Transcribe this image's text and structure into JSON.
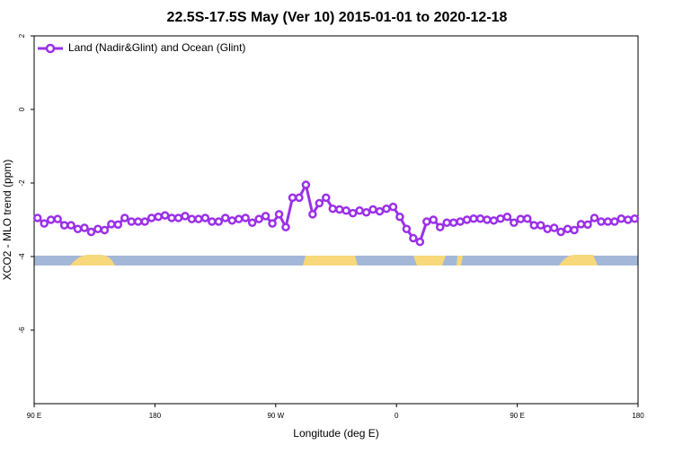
{
  "chart_data": {
    "type": "line",
    "title": "22.5S-17.5S May (Ver 10)   2015-01-01 to 2020-12-18",
    "x_label": "Longitude (deg E)",
    "y_label": "XCO2 - MLO trend (ppm)",
    "xlim": [
      90,
      540
    ],
    "ylim": [
      -8,
      2
    ],
    "xticks": [
      {
        "value": 90,
        "label": "90 E"
      },
      {
        "value": 180,
        "label": "180"
      },
      {
        "value": 270,
        "label": "90 W"
      },
      {
        "value": 360,
        "label": "0"
      },
      {
        "value": 450,
        "label": "90 E"
      },
      {
        "value": 540,
        "label": "180"
      }
    ],
    "yticks": [
      -6,
      -4,
      -2,
      0,
      2
    ],
    "legend_position": "upper-left",
    "x": [
      92.5,
      97.5,
      102.5,
      107.5,
      112.5,
      117.5,
      122.5,
      127.5,
      132.5,
      137.5,
      142.5,
      147.5,
      152.5,
      157.5,
      162.5,
      167.5,
      172.5,
      177.5,
      182.5,
      187.5,
      192.5,
      197.5,
      202.5,
      207.5,
      212.5,
      217.5,
      222.5,
      227.5,
      232.5,
      237.5,
      242.5,
      247.5,
      252.5,
      257.5,
      262.5,
      267.5,
      272.5,
      277.5,
      282.5,
      287.5,
      292.5,
      297.5,
      302.5,
      307.5,
      312.5,
      317.5,
      322.5,
      327.5,
      332.5,
      337.5,
      342.5,
      347.5,
      352.5,
      357.5,
      362.5,
      367.5,
      372.5,
      377.5,
      382.5,
      387.5,
      392.5,
      397.5,
      402.5,
      407.5,
      412.5,
      417.5,
      422.5,
      427.5,
      432.5,
      437.5,
      442.5,
      447.5,
      452.5,
      457.5,
      462.5,
      467.5,
      472.5,
      477.5,
      482.5,
      487.5,
      492.5,
      497.5,
      502.5,
      507.5,
      512.5,
      517.5,
      522.5,
      527.5,
      532.5,
      537.5
    ],
    "series": [
      {
        "name": "Land (Nadir&Glint) and Ocean (Glint)",
        "color": "#9b30e8",
        "values": [
          -2.95,
          -3.1,
          -3.0,
          -2.98,
          -3.15,
          -3.15,
          -3.25,
          -3.22,
          -3.33,
          -3.25,
          -3.28,
          -3.12,
          -3.13,
          -2.95,
          -3.05,
          -3.05,
          -3.05,
          -2.95,
          -2.92,
          -2.88,
          -2.95,
          -2.95,
          -2.9,
          -2.98,
          -2.98,
          -2.95,
          -3.05,
          -3.05,
          -2.95,
          -3.02,
          -2.98,
          -2.95,
          -3.08,
          -2.98,
          -2.9,
          -3.1,
          -2.85,
          -3.2,
          -2.4,
          -2.4,
          -2.05,
          -2.85,
          -2.55,
          -2.4,
          -2.7,
          -2.72,
          -2.75,
          -2.82,
          -2.75,
          -2.8,
          -2.72,
          -2.77,
          -2.7,
          -2.65,
          -2.92,
          -3.25,
          -3.5,
          -3.6,
          -3.05,
          -3.0,
          -3.2,
          -3.08,
          -3.08,
          -3.05,
          -3.0,
          -2.97,
          -2.97,
          -3.0,
          -3.02,
          -2.97,
          -2.92,
          -3.08,
          -2.98,
          -2.97,
          -3.15,
          -3.15,
          -3.25,
          -3.22,
          -3.33,
          -3.25,
          -3.28,
          -3.12,
          -3.13,
          -2.95,
          -3.05,
          -3.05,
          -3.05,
          -2.97,
          -3.0,
          -2.97
        ]
      }
    ]
  }
}
